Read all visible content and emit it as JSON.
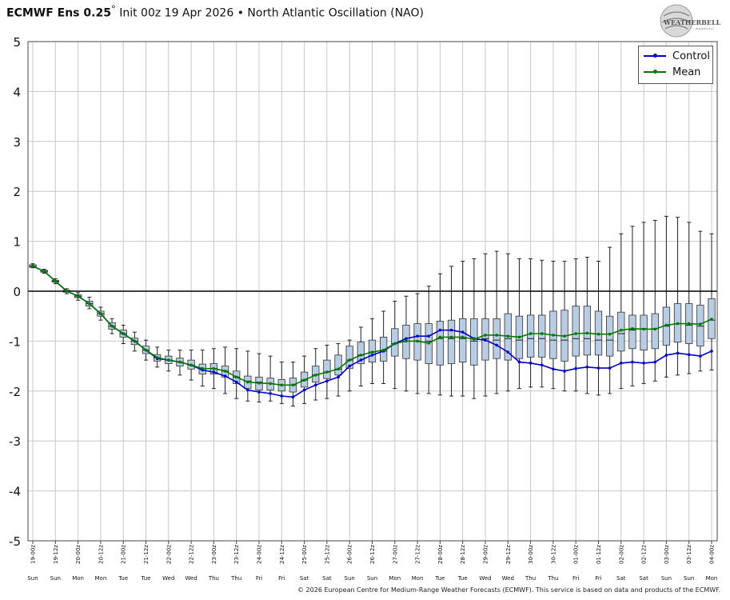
{
  "header": {
    "model": "ECMWF Ens 0.25",
    "degree": "°",
    "init": "Init 00z 19 Apr 2026",
    "bullet": "•",
    "index_name": "North Atlantic Oscillation (NAO)"
  },
  "logo": {
    "text": "WEATHERBELL",
    "subtext": "Analytics LLC",
    "icon": "globe-logo"
  },
  "footer": "© 2026 European Centre for Medium-Range Weather Forecasts (ECMWF). This service is based on data and products of the ECMWF.",
  "colors": {
    "control": "#0000cc",
    "mean": "#007a00",
    "box_fill": "#b8cce4",
    "grid": "#c8c8c8",
    "zero_line": "#000000"
  },
  "chart_data": {
    "type": "box",
    "ylim": [
      -5,
      5
    ],
    "yticks": [
      "5",
      "4",
      "3",
      "2",
      "1",
      "0",
      "-1",
      "-2",
      "-3",
      "-4",
      "-5"
    ],
    "grid": true,
    "legend_position": "top-right",
    "x_labels": [
      "19-00z",
      "19-12z",
      "20-00z",
      "20-12z",
      "21-00z",
      "21-12z",
      "22-00z",
      "22-12z",
      "23-00z",
      "23-12z",
      "24-00z",
      "24-12z",
      "25-00z",
      "25-12z",
      "26-00z",
      "26-12z",
      "27-00z",
      "27-12z",
      "28-00z",
      "28-12z",
      "29-00z",
      "29-12z",
      "30-00z",
      "30-12z",
      "01-00z",
      "01-12z",
      "02-00z",
      "02-12z",
      "03-00z",
      "03-12z",
      "04-00z"
    ],
    "day_labels": [
      "Sun",
      "Sun",
      "Mon",
      "Mon",
      "Tue",
      "Tue",
      "Wed",
      "Wed",
      "Thu",
      "Thu",
      "Fri",
      "Fri",
      "Sat",
      "Sat",
      "Sun",
      "Sun",
      "Mon",
      "Mon",
      "Tue",
      "Tue",
      "Wed",
      "Wed",
      "Thu",
      "Thu",
      "Fri",
      "Fri",
      "Sat",
      "Sat",
      "Sun",
      "Sun",
      "Mon"
    ],
    "series": [
      {
        "name": "Control",
        "values": [
          0.5,
          0.4,
          0.2,
          0.0,
          -0.1,
          -0.25,
          -0.45,
          -0.7,
          -0.85,
          -1.0,
          -1.18,
          -1.35,
          -1.38,
          -1.42,
          -1.48,
          -1.58,
          -1.62,
          -1.7,
          -1.82,
          -1.98,
          -2.02,
          -2.05,
          -2.1,
          -2.12,
          -1.98,
          -1.88,
          -1.8,
          -1.72,
          -1.5,
          -1.38,
          -1.28,
          -1.2,
          -1.05,
          -0.95,
          -0.9,
          -0.9,
          -0.78,
          -0.78,
          -0.82,
          -0.95,
          -0.98,
          -1.08,
          -1.22,
          -1.42,
          -1.44,
          -1.48,
          -1.56,
          -1.6,
          -1.55,
          -1.52,
          -1.54,
          -1.54,
          -1.44,
          -1.42,
          -1.44,
          -1.42,
          -1.28,
          -1.24,
          -1.27,
          -1.3,
          -1.2
        ]
      },
      {
        "name": "Mean",
        "values": [
          0.5,
          0.4,
          0.2,
          0.0,
          -0.1,
          -0.25,
          -0.45,
          -0.7,
          -0.85,
          -1.0,
          -1.18,
          -1.33,
          -1.38,
          -1.42,
          -1.48,
          -1.55,
          -1.55,
          -1.6,
          -1.72,
          -1.82,
          -1.84,
          -1.85,
          -1.88,
          -1.88,
          -1.78,
          -1.68,
          -1.62,
          -1.56,
          -1.38,
          -1.28,
          -1.22,
          -1.18,
          -1.05,
          -1.0,
          -1.0,
          -1.04,
          -0.92,
          -0.92,
          -0.92,
          -0.96,
          -0.88,
          -0.88,
          -0.9,
          -0.92,
          -0.85,
          -0.85,
          -0.88,
          -0.9,
          -0.85,
          -0.84,
          -0.86,
          -0.86,
          -0.78,
          -0.75,
          -0.76,
          -0.76,
          -0.68,
          -0.65,
          -0.65,
          -0.66,
          -0.56
        ]
      }
    ],
    "boxes": [
      {
        "min": 0.47,
        "q1": 0.48,
        "med": 0.5,
        "q3": 0.53,
        "max": 0.55
      },
      {
        "min": 0.36,
        "q1": 0.38,
        "med": 0.4,
        "q3": 0.42,
        "max": 0.44
      },
      {
        "min": 0.15,
        "q1": 0.18,
        "med": 0.2,
        "q3": 0.22,
        "max": 0.25
      },
      {
        "min": -0.05,
        "q1": -0.02,
        "med": 0.0,
        "q3": 0.02,
        "max": 0.05
      },
      {
        "min": -0.18,
        "q1": -0.13,
        "med": -0.1,
        "q3": -0.07,
        "max": -0.03
      },
      {
        "min": -0.35,
        "q1": -0.3,
        "med": -0.25,
        "q3": -0.2,
        "max": -0.12
      },
      {
        "min": -0.58,
        "q1": -0.5,
        "med": -0.45,
        "q3": -0.4,
        "max": -0.32
      },
      {
        "min": -0.85,
        "q1": -0.76,
        "med": -0.7,
        "q3": -0.63,
        "max": -0.55
      },
      {
        "min": -1.05,
        "q1": -0.92,
        "med": -0.85,
        "q3": -0.78,
        "max": -0.68
      },
      {
        "min": -1.2,
        "q1": -1.07,
        "med": -1.0,
        "q3": -0.94,
        "max": -0.82
      },
      {
        "min": -1.38,
        "q1": -1.25,
        "med": -1.18,
        "q3": -1.1,
        "max": -0.98
      },
      {
        "min": -1.52,
        "q1": -1.4,
        "med": -1.33,
        "q3": -1.27,
        "max": -1.12
      },
      {
        "min": -1.6,
        "q1": -1.45,
        "med": -1.38,
        "q3": -1.3,
        "max": -1.18
      },
      {
        "min": -1.68,
        "q1": -1.5,
        "med": -1.42,
        "q3": -1.34,
        "max": -1.18
      },
      {
        "min": -1.78,
        "q1": -1.56,
        "med": -1.48,
        "q3": -1.38,
        "max": -1.18
      },
      {
        "min": -1.9,
        "q1": -1.66,
        "med": -1.55,
        "q3": -1.46,
        "max": -1.18
      },
      {
        "min": -1.95,
        "q1": -1.66,
        "med": -1.55,
        "q3": -1.45,
        "max": -1.15
      },
      {
        "min": -2.05,
        "q1": -1.72,
        "med": -1.6,
        "q3": -1.5,
        "max": -1.12
      },
      {
        "min": -2.15,
        "q1": -1.85,
        "med": -1.72,
        "q3": -1.6,
        "max": -1.15
      },
      {
        "min": -2.2,
        "q1": -1.95,
        "med": -1.8,
        "q3": -1.7,
        "max": -1.2
      },
      {
        "min": -2.22,
        "q1": -1.98,
        "med": -1.82,
        "q3": -1.72,
        "max": -1.25
      },
      {
        "min": -2.2,
        "q1": -1.98,
        "med": -1.85,
        "q3": -1.74,
        "max": -1.3
      },
      {
        "min": -2.25,
        "q1": -2.0,
        "med": -1.88,
        "q3": -1.77,
        "max": -1.42
      },
      {
        "min": -2.3,
        "q1": -2.02,
        "med": -1.88,
        "q3": -1.74,
        "max": -1.42
      },
      {
        "min": -2.25,
        "q1": -1.92,
        "med": -1.78,
        "q3": -1.62,
        "max": -1.3
      },
      {
        "min": -2.18,
        "q1": -1.82,
        "med": -1.68,
        "q3": -1.5,
        "max": -1.15
      },
      {
        "min": -2.15,
        "q1": -1.75,
        "med": -1.62,
        "q3": -1.38,
        "max": -1.08
      },
      {
        "min": -2.1,
        "q1": -1.68,
        "med": -1.56,
        "q3": -1.28,
        "max": -1.05
      },
      {
        "min": -2.0,
        "q1": -1.55,
        "med": -1.38,
        "q3": -1.1,
        "max": -0.98
      },
      {
        "min": -1.9,
        "q1": -1.45,
        "med": -1.28,
        "q3": -1.02,
        "max": -0.72
      },
      {
        "min": -1.85,
        "q1": -1.42,
        "med": -1.22,
        "q3": -0.98,
        "max": -0.55
      },
      {
        "min": -1.85,
        "q1": -1.4,
        "med": -1.2,
        "q3": -0.92,
        "max": -0.4
      },
      {
        "min": -1.95,
        "q1": -1.3,
        "med": -1.05,
        "q3": -0.75,
        "max": -0.2
      },
      {
        "min": -2.0,
        "q1": -1.35,
        "med": -1.0,
        "q3": -0.68,
        "max": -0.1
      },
      {
        "min": -2.05,
        "q1": -1.38,
        "med": -1.0,
        "q3": -0.65,
        "max": -0.05
      },
      {
        "min": -2.05,
        "q1": -1.45,
        "med": -1.0,
        "q3": -0.65,
        "max": 0.1
      },
      {
        "min": -2.08,
        "q1": -1.48,
        "med": -0.95,
        "q3": -0.6,
        "max": 0.35
      },
      {
        "min": -2.1,
        "q1": -1.45,
        "med": -0.95,
        "q3": -0.58,
        "max": 0.5
      },
      {
        "min": -2.1,
        "q1": -1.42,
        "med": -0.95,
        "q3": -0.55,
        "max": 0.6
      },
      {
        "min": -2.15,
        "q1": -1.48,
        "med": -1.0,
        "q3": -0.55,
        "max": 0.65
      },
      {
        "min": -2.1,
        "q1": -1.38,
        "med": -0.95,
        "q3": -0.55,
        "max": 0.75
      },
      {
        "min": -2.05,
        "q1": -1.35,
        "med": -0.98,
        "q3": -0.55,
        "max": 0.8
      },
      {
        "min": -2.0,
        "q1": -1.38,
        "med": -0.95,
        "q3": -0.45,
        "max": 0.75
      },
      {
        "min": -1.95,
        "q1": -1.35,
        "med": -0.98,
        "q3": -0.5,
        "max": 0.65
      },
      {
        "min": -1.92,
        "q1": -1.32,
        "med": -0.95,
        "q3": -0.48,
        "max": 0.65
      },
      {
        "min": -1.92,
        "q1": -1.32,
        "med": -0.95,
        "q3": -0.48,
        "max": 0.62
      },
      {
        "min": -1.95,
        "q1": -1.35,
        "med": -0.98,
        "q3": -0.4,
        "max": 0.6
      },
      {
        "min": -2.0,
        "q1": -1.4,
        "med": -0.98,
        "q3": -0.38,
        "max": 0.6
      },
      {
        "min": -2.0,
        "q1": -1.3,
        "med": -0.95,
        "q3": -0.3,
        "max": 0.65
      },
      {
        "min": -2.05,
        "q1": -1.28,
        "med": -0.95,
        "q3": -0.3,
        "max": 0.68
      },
      {
        "min": -2.08,
        "q1": -1.28,
        "med": -0.98,
        "q3": -0.4,
        "max": 0.6
      },
      {
        "min": -2.05,
        "q1": -1.3,
        "med": -0.98,
        "q3": -0.5,
        "max": 0.88
      },
      {
        "min": -1.95,
        "q1": -1.2,
        "med": -0.85,
        "q3": -0.42,
        "max": 1.15
      },
      {
        "min": -1.9,
        "q1": -1.15,
        "med": -0.78,
        "q3": -0.48,
        "max": 1.3
      },
      {
        "min": -1.85,
        "q1": -1.18,
        "med": -0.75,
        "q3": -0.48,
        "max": 1.38
      },
      {
        "min": -1.8,
        "q1": -1.15,
        "med": -0.75,
        "q3": -0.45,
        "max": 1.42
      },
      {
        "min": -1.72,
        "q1": -1.08,
        "med": -0.7,
        "q3": -0.32,
        "max": 1.5
      },
      {
        "min": -1.68,
        "q1": -1.02,
        "med": -0.65,
        "q3": -0.25,
        "max": 1.48
      },
      {
        "min": -1.65,
        "q1": -1.05,
        "med": -0.68,
        "q3": -0.25,
        "max": 1.38
      },
      {
        "min": -1.6,
        "q1": -1.1,
        "med": -0.7,
        "q3": -0.28,
        "max": 1.2
      },
      {
        "min": -1.58,
        "q1": -0.95,
        "med": -0.58,
        "q3": -0.15,
        "max": 1.15
      }
    ]
  }
}
